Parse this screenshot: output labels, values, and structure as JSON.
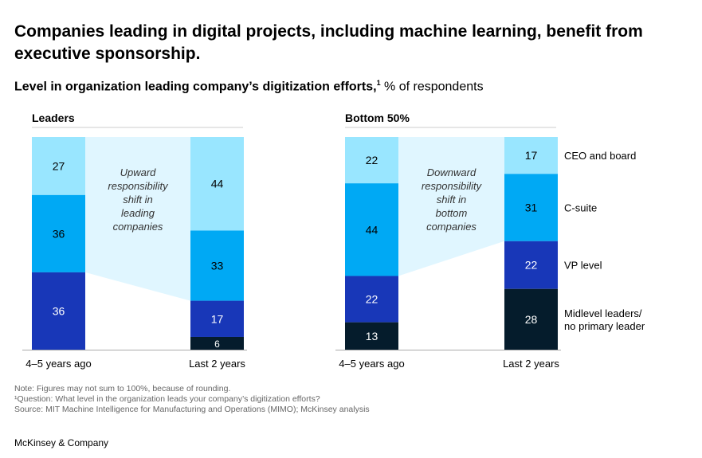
{
  "title": "Companies leading in digital projects, including machine learning, benefit from executive sponsorship.",
  "subtitle_bold": "Level in organization leading company’s digitization efforts,",
  "subtitle_sup": "1",
  "subtitle_rest": " % of respondents",
  "notes": [
    "Note: Figures may not sum to 100%, because of rounding.",
    "¹Question: What level in the organization leads your company’s digitization efforts?",
    "Source: MIT Machine Intelligence for Manufacturing and Operations (MIMO); McKinsey analysis"
  ],
  "brand": "McKinsey & Company",
  "colors": {
    "CEO and board": "#99e6ff",
    "C-suite": "#00a9f4",
    "VP level": "#1837b8",
    "Midlevel leaders/ no primary leader": "#051c2c",
    "shade": "#e0f6ff"
  },
  "chart_data": [
    {
      "type": "bar",
      "stacked": true,
      "title": "Leaders",
      "categories": [
        "4–5 years ago",
        "Last 2 years"
      ],
      "series": [
        {
          "name": "CEO and board",
          "values": [
            27,
            44
          ]
        },
        {
          "name": "C-suite",
          "values": [
            36,
            33
          ]
        },
        {
          "name": "VP level",
          "values": [
            36,
            17
          ]
        },
        {
          "name": "Midlevel leaders/ no primary leader",
          "values": [
            0,
            6
          ]
        }
      ],
      "annotation": "Upward responsibility shift in leading companies"
    },
    {
      "type": "bar",
      "stacked": true,
      "title": "Bottom 50%",
      "categories": [
        "4–5 years ago",
        "Last 2 years"
      ],
      "series": [
        {
          "name": "CEO and board",
          "values": [
            22,
            17
          ]
        },
        {
          "name": "C-suite",
          "values": [
            44,
            31
          ]
        },
        {
          "name": "VP level",
          "values": [
            22,
            22
          ]
        },
        {
          "name": "Midlevel leaders/ no primary leader",
          "values": [
            13,
            28
          ]
        }
      ],
      "annotation": "Downward responsibility shift in bottom companies"
    }
  ],
  "legend": [
    "CEO and board",
    "C-suite",
    "VP level",
    "Midlevel leaders/ no primary leader"
  ]
}
